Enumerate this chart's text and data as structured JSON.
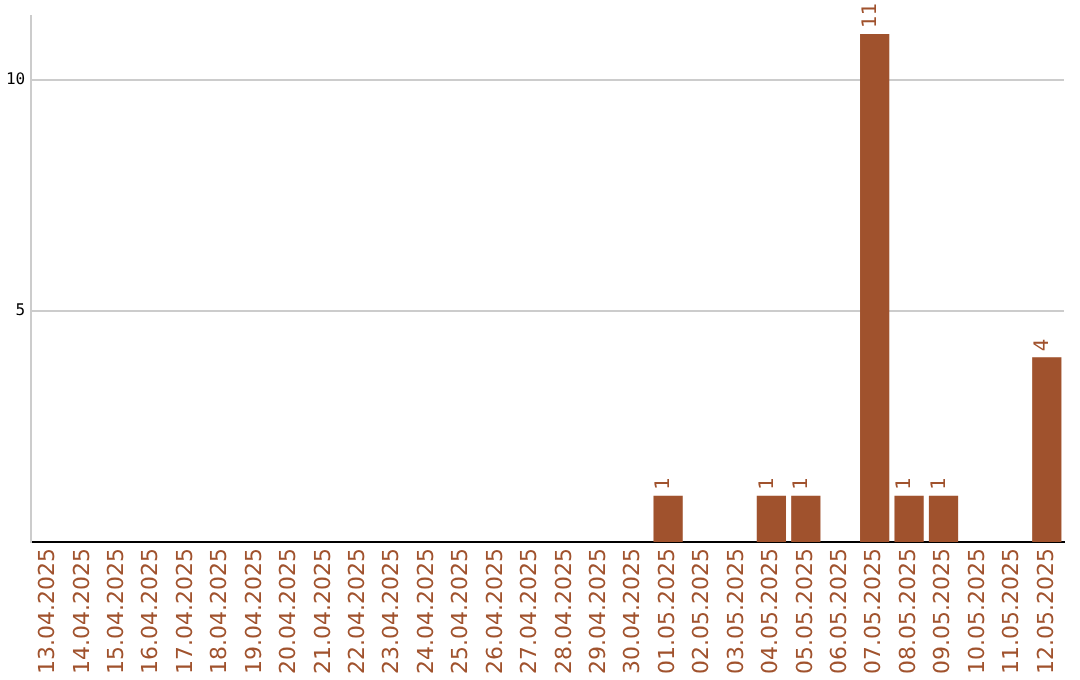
{
  "chart_data": {
    "type": "bar",
    "categories": [
      "13.04.2025",
      "14.04.2025",
      "15.04.2025",
      "16.04.2025",
      "17.04.2025",
      "18.04.2025",
      "19.04.2025",
      "20.04.2025",
      "21.04.2025",
      "22.04.2025",
      "23.04.2025",
      "24.04.2025",
      "25.04.2025",
      "26.04.2025",
      "27.04.2025",
      "28.04.2025",
      "29.04.2025",
      "30.04.2025",
      "01.05.2025",
      "02.05.2025",
      "03.05.2025",
      "04.05.2025",
      "05.05.2025",
      "06.05.2025",
      "07.05.2025",
      "08.05.2025",
      "09.05.2025",
      "10.05.2025",
      "11.05.2025",
      "12.05.2025"
    ],
    "values": [
      0,
      0,
      0,
      0,
      0,
      0,
      0,
      0,
      0,
      0,
      0,
      0,
      0,
      0,
      0,
      0,
      0,
      0,
      1,
      0,
      0,
      1,
      1,
      0,
      11,
      1,
      1,
      0,
      0,
      4
    ],
    "value_labels": [
      null,
      null,
      null,
      null,
      null,
      null,
      null,
      null,
      null,
      null,
      null,
      null,
      null,
      null,
      null,
      null,
      null,
      null,
      "1",
      null,
      null,
      "1",
      "1",
      null,
      "11",
      "1",
      "1",
      null,
      null,
      "4"
    ],
    "color": "#a0522d",
    "ylim": [
      0,
      11.4
    ],
    "yticks": [
      5,
      10
    ],
    "grid": "y",
    "legend": false
  }
}
